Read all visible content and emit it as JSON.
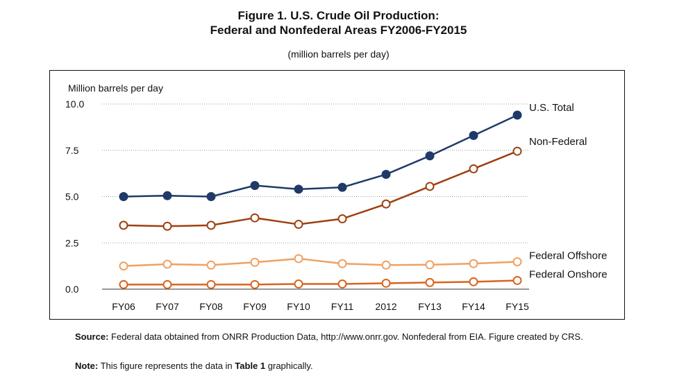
{
  "figure": {
    "title_line1": "Figure 1. U.S. Crude Oil Production:",
    "title_line2": "Federal and Nonfederal Areas FY2006-FY2015",
    "subtitle": "(million barrels per day)"
  },
  "notes": {
    "source_label": "Source:",
    "source_text": "Federal data obtained from ONRR Production Data, http://www.onrr.gov. Nonfederal from EIA. Figure created by CRS.",
    "note_label": "Note:",
    "note_text_1": "This figure represents the data in",
    "note_table": "Table 1",
    "note_text_2": "graphically."
  },
  "chart_data": {
    "type": "line",
    "ylabel": "Million barrels per day",
    "ylim": [
      0,
      10
    ],
    "yticks": [
      "0.0",
      "2.5",
      "5.0",
      "7.5",
      "10.0"
    ],
    "categories": [
      "FY06",
      "FY07",
      "FY08",
      "FY09",
      "FY10",
      "FY11",
      "2012",
      "FY13",
      "FY14",
      "FY15"
    ],
    "grid": "horizontal dotted",
    "series": [
      {
        "name": "U.S. Total",
        "color": "#1f3a68",
        "marker": "filled",
        "values": [
          5.0,
          5.05,
          5.0,
          5.6,
          5.4,
          5.5,
          6.2,
          7.2,
          8.3,
          9.4
        ]
      },
      {
        "name": "Non-Federal",
        "color": "#9e3f0e",
        "marker": "open",
        "values": [
          3.45,
          3.4,
          3.45,
          3.85,
          3.5,
          3.8,
          4.6,
          5.55,
          6.5,
          7.45
        ]
      },
      {
        "name": "Federal Offshore",
        "color": "#f0a060",
        "marker": "open",
        "values": [
          1.25,
          1.35,
          1.3,
          1.45,
          1.65,
          1.38,
          1.3,
          1.32,
          1.38,
          1.48
        ]
      },
      {
        "name": "Federal Onshore",
        "color": "#d8641e",
        "marker": "open",
        "values": [
          0.25,
          0.25,
          0.25,
          0.25,
          0.28,
          0.28,
          0.32,
          0.36,
          0.4,
          0.47
        ]
      }
    ]
  }
}
